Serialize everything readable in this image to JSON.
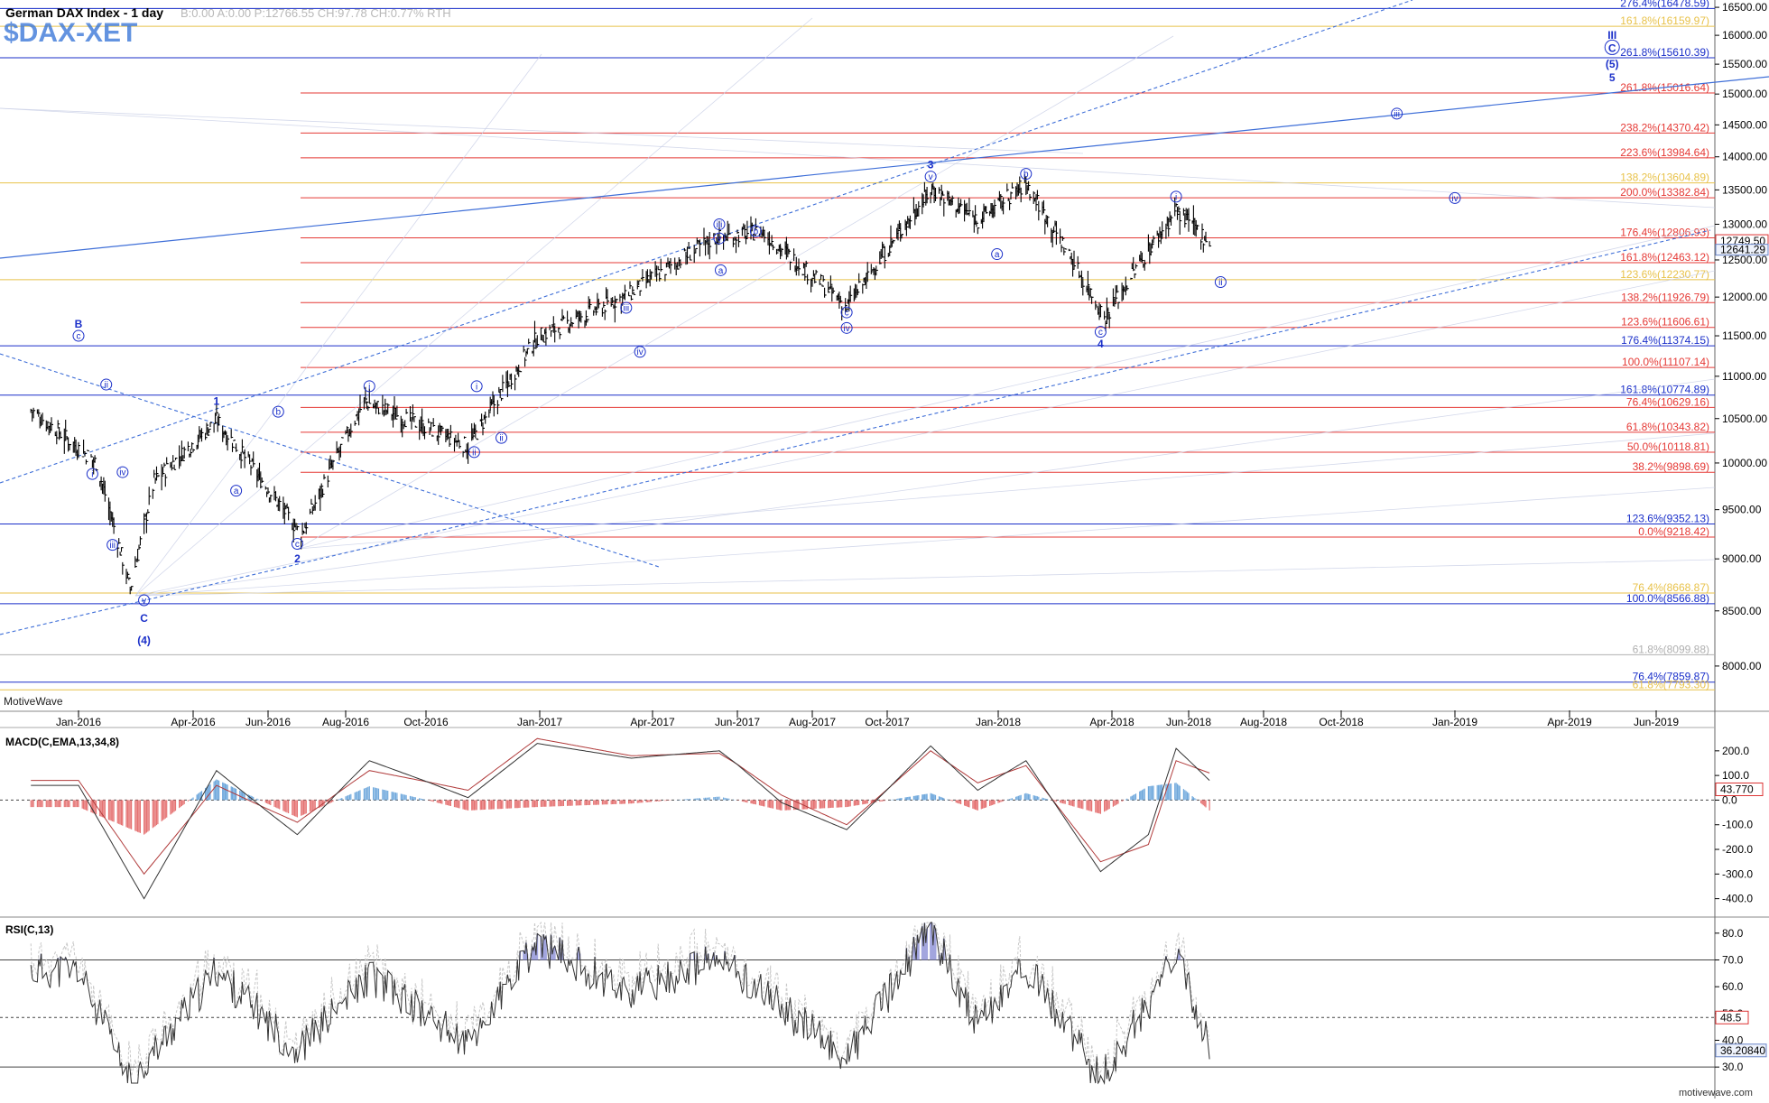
{
  "header": {
    "title": "German DAX Index - 1 day",
    "values": "B:0.00  A:0.00  P:12766.55  CH:97.78  CH:0.77%  RTH",
    "symbol": "$DAX-XET",
    "branding": "MotiveWave",
    "watermark": "motivewave.com"
  },
  "colors": {
    "bar": "#000000",
    "red_level": "#e53935",
    "blue_level": "#1a2fc9",
    "gold_level": "#e8c24a",
    "wave_label": "#1a2fc9",
    "macd_pos": "#6fa8dc",
    "macd_neg": "#e57373",
    "rsi_fill": "#8b8fd6"
  },
  "last_price": "12749.50",
  "prev_marker": "12641.29",
  "chart_data": [
    {
      "type": "line",
      "name": "price",
      "ylim": [
        7650,
        16600
      ],
      "yscale": "log",
      "yticks": [
        "16500.00",
        "16000.00",
        "15500.00",
        "15000.00",
        "14500.00",
        "14000.00",
        "13500.00",
        "13000.00",
        "12500.00",
        "12000.00",
        "11500.00",
        "11000.00",
        "10500.00",
        "10000.00",
        "9500.00",
        "9000.00",
        "8500.00",
        "8000.00"
      ],
      "xlabels": [
        "Jan-2016",
        "Apr-2016",
        "Jun-2016",
        "Aug-2016",
        "Oct-2016",
        "Jan-2017",
        "Apr-2017",
        "Jun-2017",
        "Aug-2017",
        "Oct-2017",
        "Jan-2018",
        "Apr-2018",
        "Jun-2018",
        "Aug-2018",
        "Oct-2018",
        "Jan-2019",
        "Apr-2019",
        "Jun-2019"
      ],
      "x": [
        "2016-01-15",
        "2016-02-11",
        "2016-03-01",
        "2016-04-20",
        "2016-06-27",
        "2016-08-15",
        "2016-11-04",
        "2016-12-30",
        "2017-03-15",
        "2017-05-15",
        "2017-06-20",
        "2017-08-29",
        "2017-11-07",
        "2017-12-15",
        "2018-01-23",
        "2018-03-26",
        "2018-05-22",
        "2018-06-18"
      ],
      "y": [
        10000,
        8700,
        9800,
        10480,
        9240,
        10700,
        10180,
        11480,
        12050,
        12800,
        12900,
        11870,
        13520,
        13060,
        13590,
        11730,
        13200,
        12740
      ],
      "fib_levels": [
        {
          "label": "276.4%(16478.59)",
          "value": 16478.59,
          "color": "blue",
          "full": true
        },
        {
          "label": "161.8%(16159.97)",
          "value": 16159.97,
          "color": "gold",
          "full": true
        },
        {
          "label": "261.8%(15610.39)",
          "value": 15610.39,
          "color": "blue",
          "full": true
        },
        {
          "label": "261.8%(15016.64)",
          "value": 15016.64,
          "color": "red",
          "full": false
        },
        {
          "label": "238.2%(14370.42)",
          "value": 14370.42,
          "color": "red",
          "full": false
        },
        {
          "label": "223.6%(13984.64)",
          "value": 13984.64,
          "color": "red",
          "full": false
        },
        {
          "label": "138.2%(13604.89)",
          "value": 13604.89,
          "color": "gold",
          "full": true
        },
        {
          "label": "200.0%(13382.84)",
          "value": 13382.84,
          "color": "red",
          "full": false
        },
        {
          "label": "176.4%(12806.93)",
          "value": 12806.93,
          "color": "red",
          "full": false
        },
        {
          "label": "161.8%(12463.12)",
          "value": 12463.12,
          "color": "red",
          "full": false
        },
        {
          "label": "123.6%(12230.77)",
          "value": 12230.77,
          "color": "gold",
          "full": true
        },
        {
          "label": "138.2%(11926.79)",
          "value": 11926.79,
          "color": "red",
          "full": false
        },
        {
          "label": "123.6%(11606.61)",
          "value": 11606.61,
          "color": "red",
          "full": false
        },
        {
          "label": "176.4%(11374.15)",
          "value": 11374.15,
          "color": "blue",
          "full": true
        },
        {
          "label": "100.0%(11107.14)",
          "value": 11107.14,
          "color": "red",
          "full": false
        },
        {
          "label": "161.8%(10774.89)",
          "value": 10774.89,
          "color": "blue",
          "full": true
        },
        {
          "label": "76.4%(10629.16)",
          "value": 10629.16,
          "color": "red",
          "full": false
        },
        {
          "label": "61.8%(10343.82)",
          "value": 10343.82,
          "color": "red",
          "full": false
        },
        {
          "label": "50.0%(10118.81)",
          "value": 10118.81,
          "color": "red",
          "full": false
        },
        {
          "label": "38.2%(9898.69)",
          "value": 9898.69,
          "color": "red",
          "full": false
        },
        {
          "label": "123.6%(9352.13)",
          "value": 9352.13,
          "color": "blue",
          "full": true
        },
        {
          "label": "0.0%(9218.42)",
          "value": 9218.42,
          "color": "red",
          "full": false
        },
        {
          "label": "76.4%(8668.87)",
          "value": 8668.87,
          "color": "gold",
          "full": true
        },
        {
          "label": "100.0%(8566.88)",
          "value": 8566.88,
          "color": "blue",
          "full": true
        },
        {
          "label": "61.8%(8099.88)",
          "value": 8099.88,
          "color": "gray",
          "full": true
        },
        {
          "label": "76.4%(7859.87)",
          "value": 7859.87,
          "color": "blue",
          "full": true
        },
        {
          "label": "61.8%(7793.30)",
          "value": 7793.3,
          "color": "gold",
          "full": true
        }
      ],
      "wave_labels": [
        {
          "text": "B",
          "date": "2016-01-01",
          "price": 11650,
          "style": "bold"
        },
        {
          "text": "c",
          "date": "2016-01-01",
          "price": 11500,
          "style": "circle"
        },
        {
          "text": "ii",
          "date": "2016-01-23",
          "price": 10900,
          "style": "circle"
        },
        {
          "text": "i",
          "date": "2016-01-12",
          "price": 9880,
          "style": "circle"
        },
        {
          "text": "iv",
          "date": "2016-02-05",
          "price": 9900,
          "style": "circle"
        },
        {
          "text": "iii",
          "date": "2016-01-28",
          "price": 9140,
          "style": "circle"
        },
        {
          "text": "v",
          "date": "2016-02-22",
          "price": 8600,
          "style": "circle"
        },
        {
          "text": "C",
          "date": "2016-02-22",
          "price": 8430,
          "style": "bold"
        },
        {
          "text": "(4)",
          "date": "2016-02-22",
          "price": 8230,
          "style": "bold"
        },
        {
          "text": "1",
          "date": "2016-04-20",
          "price": 10700,
          "style": "bold"
        },
        {
          "text": "a",
          "date": "2016-05-06",
          "price": 9700,
          "style": "circle"
        },
        {
          "text": "b",
          "date": "2016-06-09",
          "price": 10580,
          "style": "circle"
        },
        {
          "text": "c",
          "date": "2016-06-24",
          "price": 9150,
          "style": "circle"
        },
        {
          "text": "2",
          "date": "2016-06-24",
          "price": 9000,
          "style": "bold"
        },
        {
          "text": "i",
          "date": "2016-08-19",
          "price": 10880,
          "style": "circle"
        },
        {
          "text": "ii",
          "date": "2016-11-09",
          "price": 10120,
          "style": "circle"
        },
        {
          "text": "i",
          "date": "2016-11-11",
          "price": 10880,
          "style": "circle"
        },
        {
          "text": "ii",
          "date": "2016-12-01",
          "price": 10280,
          "style": "circle"
        },
        {
          "text": "iii",
          "date": "2017-03-11",
          "price": 11860,
          "style": "circle"
        },
        {
          "text": "iv",
          "date": "2017-03-22",
          "price": 11300,
          "style": "circle"
        },
        {
          "text": "iii",
          "date": "2017-05-19",
          "price": 13000,
          "style": "circle"
        },
        {
          "text": "v",
          "date": "2017-05-19",
          "price": 12800,
          "style": "circle"
        },
        {
          "text": "a",
          "date": "2017-05-20",
          "price": 12360,
          "style": "circle"
        },
        {
          "text": "b",
          "date": "2017-06-16",
          "price": 12900,
          "style": "circle"
        },
        {
          "text": "c",
          "date": "2017-08-29",
          "price": 11800,
          "style": "circle"
        },
        {
          "text": "iv",
          "date": "2017-08-29",
          "price": 11600,
          "style": "circle"
        },
        {
          "text": "3",
          "date": "2017-11-06",
          "price": 13880,
          "style": "bold"
        },
        {
          "text": "v",
          "date": "2017-11-06",
          "price": 13700,
          "style": "circle"
        },
        {
          "text": "b",
          "date": "2018-01-23",
          "price": 13740,
          "style": "circle"
        },
        {
          "text": "a",
          "date": "2017-12-31",
          "price": 12580,
          "style": "circle"
        },
        {
          "text": "c",
          "date": "2018-03-23",
          "price": 11550,
          "style": "circle"
        },
        {
          "text": "4",
          "date": "2018-03-23",
          "price": 11400,
          "style": "bold"
        },
        {
          "text": "i",
          "date": "2018-05-22",
          "price": 13400,
          "style": "circle"
        },
        {
          "text": "ii",
          "date": "2018-06-27",
          "price": 12200,
          "style": "circle"
        },
        {
          "text": "iii",
          "date": "2018-11-15",
          "price": 14680,
          "style": "circle"
        },
        {
          "text": "iv",
          "date": "2019-01-01",
          "price": 13380,
          "style": "circle"
        },
        {
          "text": "5",
          "date": "2019-05-01",
          "price": 15270,
          "style": "bold"
        },
        {
          "text": "(5)",
          "date": "2019-05-01",
          "price": 15500,
          "style": "bold"
        },
        {
          "text": "C",
          "date": "2019-05-01",
          "price": 15790,
          "style": "circlebig"
        },
        {
          "text": "III",
          "date": "2019-05-01",
          "price": 16000,
          "style": "bold"
        }
      ]
    },
    {
      "type": "bar",
      "name": "MACD(C,EMA,13,34,8)",
      "title": "MACD(C,EMA,13,34,8)",
      "ylim": [
        -460,
        280
      ],
      "yticks": [
        "200.0",
        "100.0",
        "0.0",
        "-100.0",
        "-200.0",
        "-300.0",
        "-400.0"
      ],
      "last_value": "43.770",
      "x": [
        "2016-01-01",
        "2016-02-22",
        "2016-04-20",
        "2016-06-24",
        "2016-08-19",
        "2016-11-04",
        "2016-12-30",
        "2017-03-15",
        "2017-05-19",
        "2017-07-07",
        "2017-08-29",
        "2017-11-06",
        "2017-12-15",
        "2018-01-23",
        "2018-03-23",
        "2018-04-30",
        "2018-05-22",
        "2018-06-18"
      ],
      "series": [
        {
          "name": "MACD",
          "values": [
            60,
            -400,
            120,
            -140,
            160,
            10,
            230,
            170,
            200,
            -10,
            -120,
            220,
            40,
            160,
            -290,
            -140,
            210,
            80
          ]
        },
        {
          "name": "Signal",
          "values": [
            80,
            -300,
            60,
            -90,
            120,
            40,
            250,
            180,
            190,
            20,
            -100,
            200,
            70,
            140,
            -250,
            -180,
            160,
            110
          ]
        }
      ]
    },
    {
      "type": "line",
      "name": "RSI(C,13)",
      "title": "RSI(C,13)",
      "ylim": [
        25,
        85
      ],
      "yticks": [
        "80.0",
        "70.0",
        "60.0",
        "50.0",
        "40.0",
        "30.0"
      ],
      "reference": [
        "70.0",
        "48.5"
      ],
      "last_value": "36.20840",
      "x": [
        "2016-01-01",
        "2016-02-11",
        "2016-04-20",
        "2016-06-24",
        "2016-08-19",
        "2016-11-04",
        "2016-12-30",
        "2017-03-15",
        "2017-05-19",
        "2017-08-29",
        "2017-11-06",
        "2017-12-15",
        "2018-01-23",
        "2018-03-23",
        "2018-05-22",
        "2018-06-18"
      ],
      "values": [
        66,
        24,
        66,
        36,
        64,
        38,
        76,
        58,
        70,
        33,
        82,
        45,
        68,
        25,
        71,
        38
      ]
    }
  ]
}
